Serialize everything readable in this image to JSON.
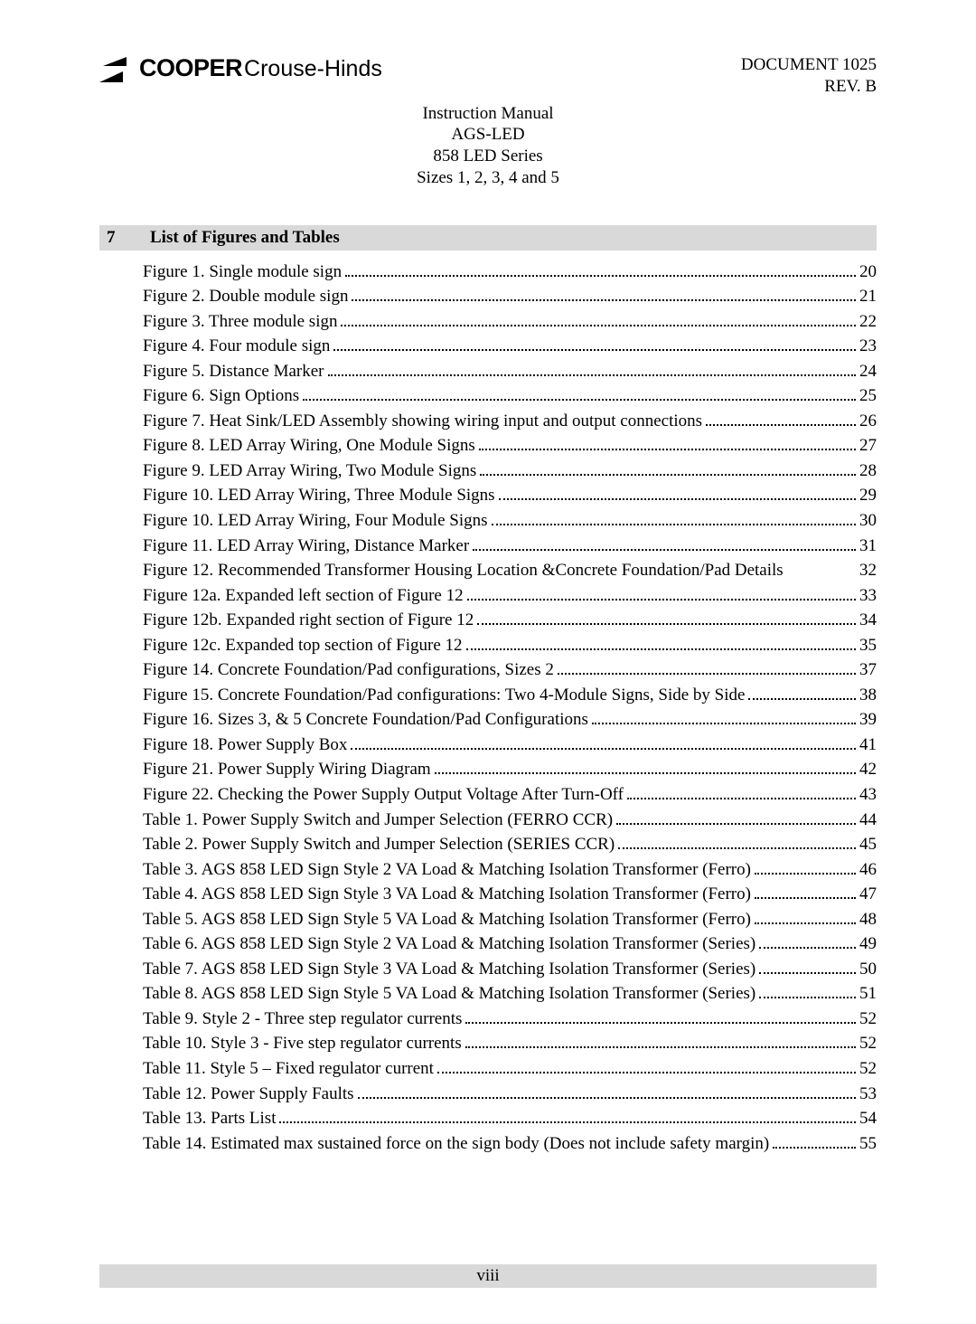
{
  "header": {
    "logo": {
      "cooper": "COOPER",
      "crouse_hinds": "Crouse-Hinds"
    },
    "doc_number": "DOCUMENT 1025",
    "rev": "REV. B",
    "subtitle_lines": [
      "Instruction Manual",
      "AGS-LED",
      "858 LED Series",
      "Sizes 1, 2, 3, 4 and 5"
    ]
  },
  "section": {
    "number": "7",
    "title": "List of Figures and Tables"
  },
  "toc": [
    {
      "label": "Figure 1.  Single module sign",
      "page": "20",
      "dots": true
    },
    {
      "label": "Figure 2.  Double module sign",
      "page": "21",
      "dots": true
    },
    {
      "label": "Figure 3.  Three module sign",
      "page": "22",
      "dots": true
    },
    {
      "label": "Figure 4.  Four module sign",
      "page": "23",
      "dots": true
    },
    {
      "label": "Figure 5.  Distance Marker",
      "page": "24",
      "dots": true
    },
    {
      "label": "Figure 6.  Sign Options",
      "page": "25",
      "dots": true
    },
    {
      "label": "Figure 7.  Heat Sink/LED Assembly showing wiring input and output connections",
      "page": "26",
      "dots": true
    },
    {
      "label": "Figure 8.  LED Array Wiring, One Module Signs",
      "page": "27",
      "dots": true
    },
    {
      "label": "Figure 9.  LED Array Wiring, Two Module Signs",
      "page": "28",
      "dots": true
    },
    {
      "label": "Figure 10.  LED Array Wiring, Three Module Signs",
      "page": "29",
      "dots": true
    },
    {
      "label": "Figure 10.  LED Array Wiring, Four Module Signs",
      "page": "30",
      "dots": true
    },
    {
      "label": "Figure 11.  LED Array Wiring, Distance Marker",
      "page": "31",
      "dots": true
    },
    {
      "label": "Figure 12.  Recommended Transformer Housing Location &Concrete Foundation/Pad Details",
      "page": "32",
      "dots": false
    },
    {
      "label": "Figure 12a.  Expanded left section of Figure 12",
      "page": "33",
      "dots": true
    },
    {
      "label": "Figure 12b.  Expanded right section of Figure 12",
      "page": "34",
      "dots": true
    },
    {
      "label": "Figure 12c.  Expanded top section of Figure 12",
      "page": "35",
      "dots": true
    },
    {
      "label": "Figure 14.  Concrete Foundation/Pad configurations, Sizes 2",
      "page": "37",
      "dots": true
    },
    {
      "label": "Figure 15.  Concrete Foundation/Pad configurations: Two 4-Module Signs, Side by Side",
      "page": "38",
      "dots": true
    },
    {
      "label": "Figure 16.  Sizes 3, & 5 Concrete Foundation/Pad Configurations",
      "page": "39",
      "dots": true
    },
    {
      "label": "Figure 18.  Power Supply Box",
      "page": "41",
      "dots": true
    },
    {
      "label": "Figure 21.  Power Supply Wiring Diagram",
      "page": "42",
      "dots": true
    },
    {
      "label": "Figure 22.  Checking the Power Supply Output Voltage After Turn-Off",
      "page": "43",
      "dots": true
    },
    {
      "label": "Table 1.  Power Supply Switch and Jumper Selection (FERRO CCR)",
      "page": "44",
      "dots": true
    },
    {
      "label": "Table 2.  Power Supply Switch and Jumper Selection (SERIES CCR)",
      "page": "45",
      "dots": true
    },
    {
      "label": "Table 3.  AGS 858 LED Sign Style 2 VA Load & Matching Isolation Transformer (Ferro)",
      "page": "46",
      "dots": true
    },
    {
      "label": "Table 4.  AGS 858 LED Sign Style 3 VA Load & Matching Isolation Transformer (Ferro)",
      "page": "47",
      "dots": true
    },
    {
      "label": "Table 5.  AGS 858 LED Sign Style 5 VA Load & Matching Isolation Transformer (Ferro)",
      "page": "48",
      "dots": true
    },
    {
      "label": "Table 6.  AGS 858 LED Sign Style 2 VA Load & Matching Isolation Transformer (Series)",
      "page": "49",
      "dots": true
    },
    {
      "label": "Table 7.  AGS 858 LED Sign Style 3 VA Load & Matching Isolation Transformer (Series)",
      "page": "50",
      "dots": true
    },
    {
      "label": "Table 8.  AGS 858 LED Sign Style 5 VA Load & Matching Isolation Transformer (Series)",
      "page": "51",
      "dots": true
    },
    {
      "label": "Table 9.  Style 2 - Three step regulator currents",
      "page": "52",
      "dots": true
    },
    {
      "label": "Table 10.  Style 3 - Five step regulator currents",
      "page": "52",
      "dots": true
    },
    {
      "label": "Table 11.  Style 5 – Fixed regulator current",
      "page": "52",
      "dots": true
    },
    {
      "label": "Table 12.  Power Supply Faults",
      "page": "53",
      "dots": true
    },
    {
      "label": "Table 13.  Parts List",
      "page": "54",
      "dots": true
    },
    {
      "label": "Table 14.  Estimated max sustained force on the sign body (Does not include safety margin)",
      "page": "55",
      "dots": true
    }
  ],
  "footer": {
    "page_label": "viii"
  },
  "colors": {
    "bar_bg": "#d9d9d9",
    "text": "#000000",
    "page_bg": "#ffffff"
  }
}
